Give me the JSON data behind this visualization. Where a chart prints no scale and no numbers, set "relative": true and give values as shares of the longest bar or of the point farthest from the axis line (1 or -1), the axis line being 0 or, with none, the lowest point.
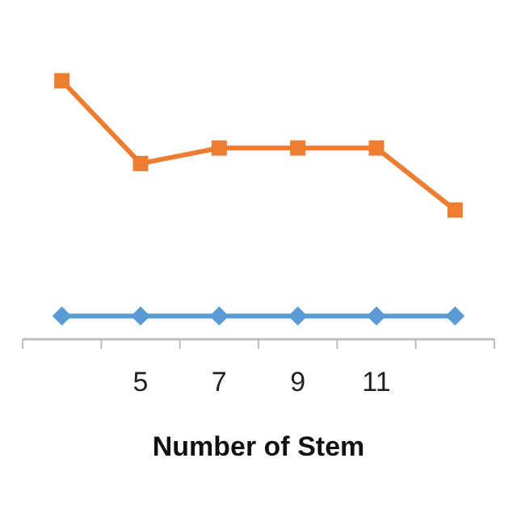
{
  "chart_data": {
    "type": "line",
    "xlabel": "Number of Stem",
    "relative": true,
    "categories": [
      null,
      "5",
      "7",
      "9",
      "11",
      null
    ],
    "series": [
      {
        "color": "#ed7d31",
        "marker": "square",
        "values": [
          1,
          0.68,
          0.74,
          0.74,
          0.74,
          0.5
        ]
      },
      {
        "color": "#5b9bd5",
        "marker": "diamond",
        "values": [
          0.09,
          0.09,
          0.09,
          0.09,
          0.09,
          0.09
        ]
      }
    ]
  }
}
